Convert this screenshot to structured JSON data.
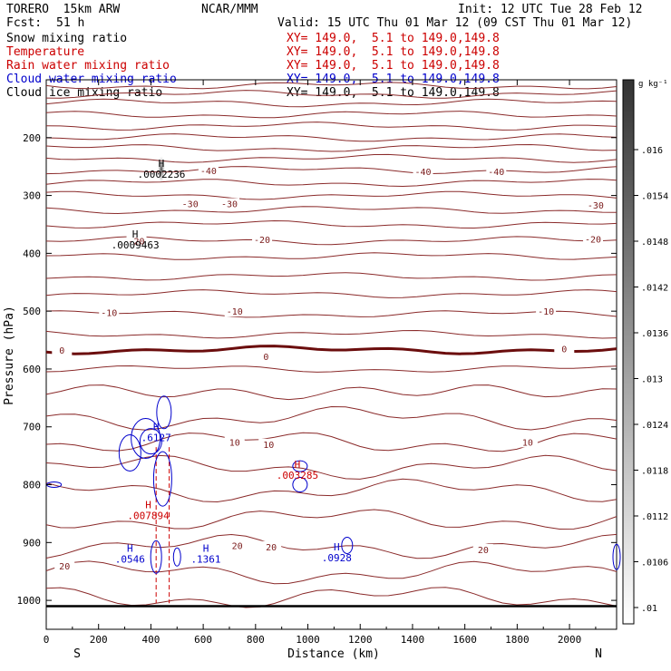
{
  "header": {
    "model": "TORERO  15km ARW",
    "fcst_label": "Fcst:",
    "fcst_value": "51 h",
    "center": "NCAR/MMM",
    "init": "Init: 12 UTC Tue 28 Feb 12",
    "valid": "Valid: 15 UTC Thu 01 Mar 12 (09 CST Thu 01 Mar 12)"
  },
  "fields": [
    {
      "name": "Snow mixing ratio",
      "xy": "XY= 149.0,  5.1 to 149.0,149.8",
      "color": "#000000"
    },
    {
      "name": "Temperature",
      "xy": "XY= 149.0,  5.1 to 149.0,149.8",
      "color": "#cc0000"
    },
    {
      "name": "Rain water mixing ratio",
      "xy": "XY= 149.0,  5.1 to 149.0,149.8",
      "color": "#cc0000"
    },
    {
      "name": "Cloud water mixing ratio",
      "xy": "XY= 149.0,  5.1 to 149.0,149.8",
      "color": "#0000cc"
    },
    {
      "name": "Cloud ice mixing ratio",
      "xy": "XY= 149.0,  5.1 to 149.0,149.8",
      "color": "#000000"
    }
  ],
  "colorbar": {
    "unit": "g kg⁻¹",
    "ticks": [
      ".016",
      ".0154",
      ".0148",
      ".0142",
      ".0136",
      ".013",
      ".0124",
      ".0118",
      ".0112",
      ".0106",
      ".01"
    ]
  },
  "chart_data": {
    "type": "contour",
    "xlabel": "Distance (km)",
    "ylabel": "Pressure (hPa)",
    "xlim": [
      0,
      2180
    ],
    "ylim": [
      100,
      1050
    ],
    "yscale": "linear, inverted",
    "x_ticks": [
      0,
      200,
      400,
      600,
      800,
      1000,
      1200,
      1400,
      1600,
      1800,
      2000
    ],
    "y_ticks": [
      200,
      300,
      400,
      500,
      600,
      700,
      800,
      900,
      1000
    ],
    "end_labels": {
      "left": "S",
      "right": "N"
    },
    "temperature_contour_labels": [
      {
        "text": "-40",
        "x": 620,
        "p": 257
      },
      {
        "text": "-40",
        "x": 1440,
        "p": 258
      },
      {
        "text": "-40",
        "x": 1720,
        "p": 258
      },
      {
        "text": "-30",
        "x": 550,
        "p": 314
      },
      {
        "text": "-30",
        "x": 700,
        "p": 314
      },
      {
        "text": "-30",
        "x": 2100,
        "p": 316
      },
      {
        "text": "-20",
        "x": 345,
        "p": 378
      },
      {
        "text": "-20",
        "x": 825,
        "p": 376
      },
      {
        "text": "-20",
        "x": 2090,
        "p": 375
      },
      {
        "text": "-10",
        "x": 240,
        "p": 502
      },
      {
        "text": "-10",
        "x": 720,
        "p": 500
      },
      {
        "text": "-10",
        "x": 1910,
        "p": 500
      },
      {
        "text": "0",
        "x": 60,
        "p": 567
      },
      {
        "text": "0",
        "x": 840,
        "p": 578
      },
      {
        "text": "0",
        "x": 1980,
        "p": 565
      },
      {
        "text": "10",
        "x": 720,
        "p": 726
      },
      {
        "text": "10",
        "x": 850,
        "p": 730
      },
      {
        "text": "10",
        "x": 1840,
        "p": 726
      },
      {
        "text": "20",
        "x": 730,
        "p": 905
      },
      {
        "text": "20",
        "x": 860,
        "p": 907
      },
      {
        "text": "20",
        "x": 1670,
        "p": 912
      },
      {
        "text": "20",
        "x": 70,
        "p": 940
      }
    ],
    "maxima": [
      {
        "field": "snow",
        "label": "H",
        "value": ".0002236",
        "x": 440,
        "p": 260
      },
      {
        "field": "cloud ice",
        "label": "H",
        "value": ".0009463",
        "x": 340,
        "p": 382
      },
      {
        "field": "cloud water",
        "label": "H",
        "value": ".6127",
        "x": 420,
        "p": 715
      },
      {
        "field": "rain",
        "label": "H",
        "value": ".007894",
        "x": 390,
        "p": 850
      },
      {
        "field": "rain",
        "label": "H",
        "value": ".003285",
        "x": 960,
        "p": 780
      },
      {
        "field": "cloud water",
        "label": "H",
        "value": ".0546",
        "x": 320,
        "p": 925
      },
      {
        "field": "cloud water",
        "label": "H",
        "value": ".1361",
        "x": 610,
        "p": 925
      },
      {
        "field": "cloud water",
        "label": "H",
        "value": ".0928",
        "x": 1110,
        "p": 923
      }
    ]
  }
}
